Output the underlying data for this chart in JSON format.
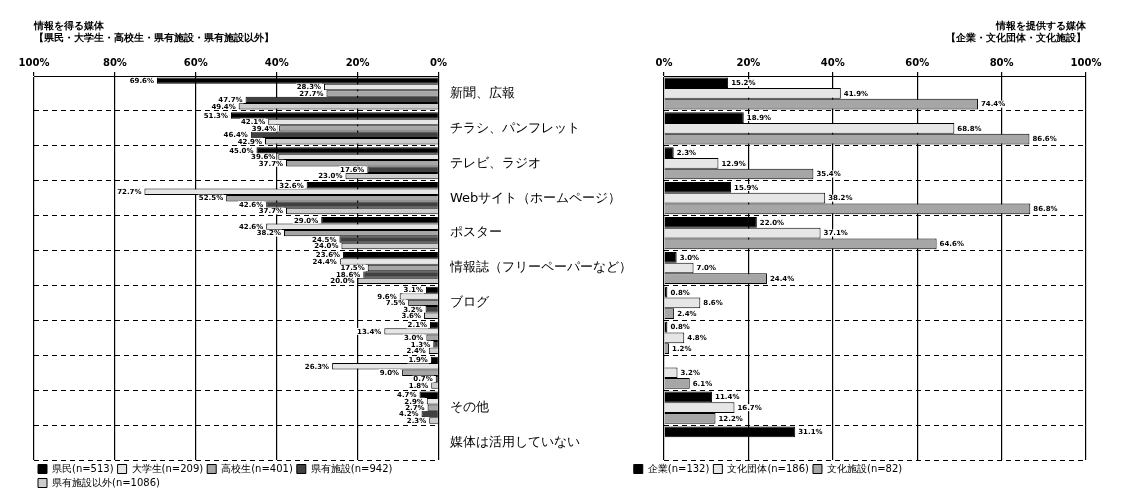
{
  "chart_data": [
    {
      "type": "bar",
      "orientation": "horizontal",
      "title": "情報を得る媒体",
      "subtitle": "【県民・大学生・高校生・県有施設・県有施設以外】",
      "categories": [
        null,
        null,
        null,
        null,
        null,
        null,
        null,
        null,
        null,
        null,
        null
      ],
      "xlim": [
        100,
        0
      ],
      "xticks": [
        {
          "value": 100,
          "label": "100%"
        },
        {
          "value": 80,
          "label": "80%"
        },
        {
          "value": 60,
          "label": "60%"
        },
        {
          "value": 40,
          "label": "40%"
        },
        {
          "value": 20,
          "label": "20%"
        },
        {
          "value": 0,
          "label": "0%"
        }
      ],
      "grid": true,
      "tick_labels": "x",
      "legend": "bottom left",
      "series": [
        {
          "name": "県民(n=513)",
          "color": "#000000",
          "values": [
            69.6,
            51.3,
            45.0,
            32.6,
            29.0,
            23.6,
            3.1,
            2.1,
            1.9,
            4.7,
            null
          ],
          "value_labels": [
            "69.6%",
            "51.3%",
            "45.0%",
            "32.6%",
            "29.0%",
            "23.6%",
            "3.1%",
            "2.1%",
            "1.9%",
            "4.7%",
            null
          ]
        },
        {
          "name": "大学生(n=209)",
          "color": "#e6e6e6",
          "values": [
            28.3,
            42.1,
            39.6,
            72.7,
            42.6,
            24.4,
            9.6,
            13.4,
            26.3,
            2.9,
            null
          ],
          "value_labels": [
            "28.3%",
            "42.1%",
            "39.6%",
            "72.7%",
            "42.6%",
            "24.4%",
            "9.6%",
            "13.4%",
            "26.3%",
            "2.9%",
            null
          ]
        },
        {
          "name": "高校生(n=401)",
          "color": "#a6a6a6",
          "values": [
            27.7,
            39.4,
            37.7,
            52.5,
            38.2,
            17.5,
            7.5,
            3.0,
            9.0,
            2.7,
            null
          ],
          "value_labels": [
            "27.7%",
            "39.4%",
            "37.7%",
            "52.5%",
            "38.2%",
            "17.5%",
            "7.5%",
            "3.0%",
            "9.0%",
            "2.7%",
            null
          ]
        },
        {
          "name": "県有施設(n=942)",
          "color": "#404040",
          "values": [
            47.7,
            46.4,
            17.6,
            42.6,
            24.5,
            18.6,
            3.2,
            1.3,
            0.7,
            4.2,
            null
          ],
          "value_labels": [
            "47.7%",
            "46.4%",
            "17.6%",
            "42.6%",
            "24.5%",
            "18.6%",
            "3.2%",
            "1.3%",
            "0.7%",
            "4.2%",
            null
          ]
        },
        {
          "name": "県有施設以外(n=1086)",
          "color": "#cccccc",
          "values": [
            49.4,
            42.9,
            23.0,
            37.7,
            24.0,
            20.0,
            3.6,
            2.4,
            1.8,
            2.3,
            null
          ],
          "value_labels": [
            "49.4%",
            "42.9%",
            "23.0%",
            "37.7%",
            "24.0%",
            "20.0%",
            "3.6%",
            "2.4%",
            "1.8%",
            "2.3%",
            null
          ]
        }
      ]
    },
    {
      "type": "bar",
      "orientation": "horizontal",
      "title": "情報を提供する媒体",
      "subtitle": "【企業・文化団体・文化施設】",
      "categories": [
        "新聞、広報",
        "チラシ、パンフレット",
        "テレビ、ラジオ",
        "Webサイト（ホームページ）",
        "ポスター",
        "情報誌（フリーペーパーなど）",
        "ブログ",
        null,
        null,
        "その他",
        "媒体は活用していない"
      ],
      "xlim": [
        0,
        100
      ],
      "xticks": [
        {
          "value": 0,
          "label": "0%"
        },
        {
          "value": 20,
          "label": "20%"
        },
        {
          "value": 40,
          "label": "40%"
        },
        {
          "value": 60,
          "label": "60%"
        },
        {
          "value": 80,
          "label": "80%"
        },
        {
          "value": 100,
          "label": "100%"
        }
      ],
      "grid": true,
      "legend": "bottom",
      "series": [
        {
          "name": "企業(n=132)",
          "color": "#000000",
          "values": [
            15.2,
            18.9,
            2.3,
            15.9,
            22.0,
            3.0,
            0.8,
            0.8,
            null,
            11.4,
            31.1
          ],
          "value_labels": [
            "15.2%",
            "18.9%",
            "2.3%",
            "15.9%",
            "22.0%",
            "3.0%",
            "0.8%",
            "0.8%",
            null,
            "11.4%",
            "31.1%"
          ]
        },
        {
          "name": "文化団体(n=186)",
          "color": "#e6e6e6",
          "values": [
            41.9,
            68.8,
            12.9,
            38.2,
            37.1,
            7.0,
            8.6,
            4.8,
            3.2,
            16.7,
            null
          ],
          "value_labels": [
            "41.9%",
            "68.8%",
            "12.9%",
            "38.2%",
            "37.1%",
            "7.0%",
            "8.6%",
            "4.8%",
            "3.2%",
            "16.7%",
            null
          ]
        },
        {
          "name": "文化施設(n=82)",
          "color": "#a6a6a6",
          "values": [
            74.4,
            86.6,
            35.4,
            86.8,
            64.6,
            24.4,
            2.4,
            1.2,
            6.1,
            12.2,
            null
          ],
          "value_labels": [
            "74.4%",
            "86.6%",
            "35.4%",
            "86.8%",
            "64.6%",
            "24.4%",
            "2.4%",
            "1.2%",
            "6.1%",
            "12.2%",
            null
          ]
        }
      ]
    }
  ]
}
